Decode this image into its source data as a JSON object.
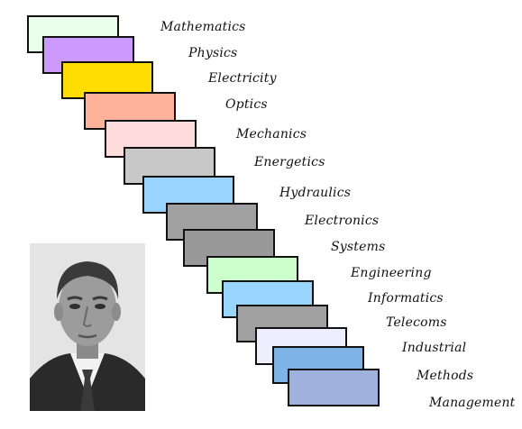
{
  "staircase": {
    "steps": [
      {
        "label": "Mathematics",
        "color": "#eaffea"
      },
      {
        "label": "Physics",
        "color": "#cc99ff"
      },
      {
        "label": "Electricity",
        "color": "#ffdd00"
      },
      {
        "label": "Optics",
        "color": "#ffb199"
      },
      {
        "label": "Mechanics",
        "color": "#ffdddd"
      },
      {
        "label": "Energetics",
        "color": "#c8c8c8"
      },
      {
        "label": "Hydraulics",
        "color": "#99d3ff"
      },
      {
        "label": "Electronics",
        "color": "#a0a0a0"
      },
      {
        "label": "Systems",
        "color": "#999999"
      },
      {
        "label": "Engineering",
        "color": "#ccffcc"
      },
      {
        "label": "Informatics",
        "color": "#99d6ff"
      },
      {
        "label": "Telecoms",
        "color": "#a0a0a0"
      },
      {
        "label": "Industrial",
        "color": "#eeeeff"
      },
      {
        "label": "Methods",
        "color": "#7db3e6"
      },
      {
        "label": "Management",
        "color": "#9fb2dd"
      }
    ]
  },
  "portrait": {
    "description_icon": "person-photo-icon"
  }
}
